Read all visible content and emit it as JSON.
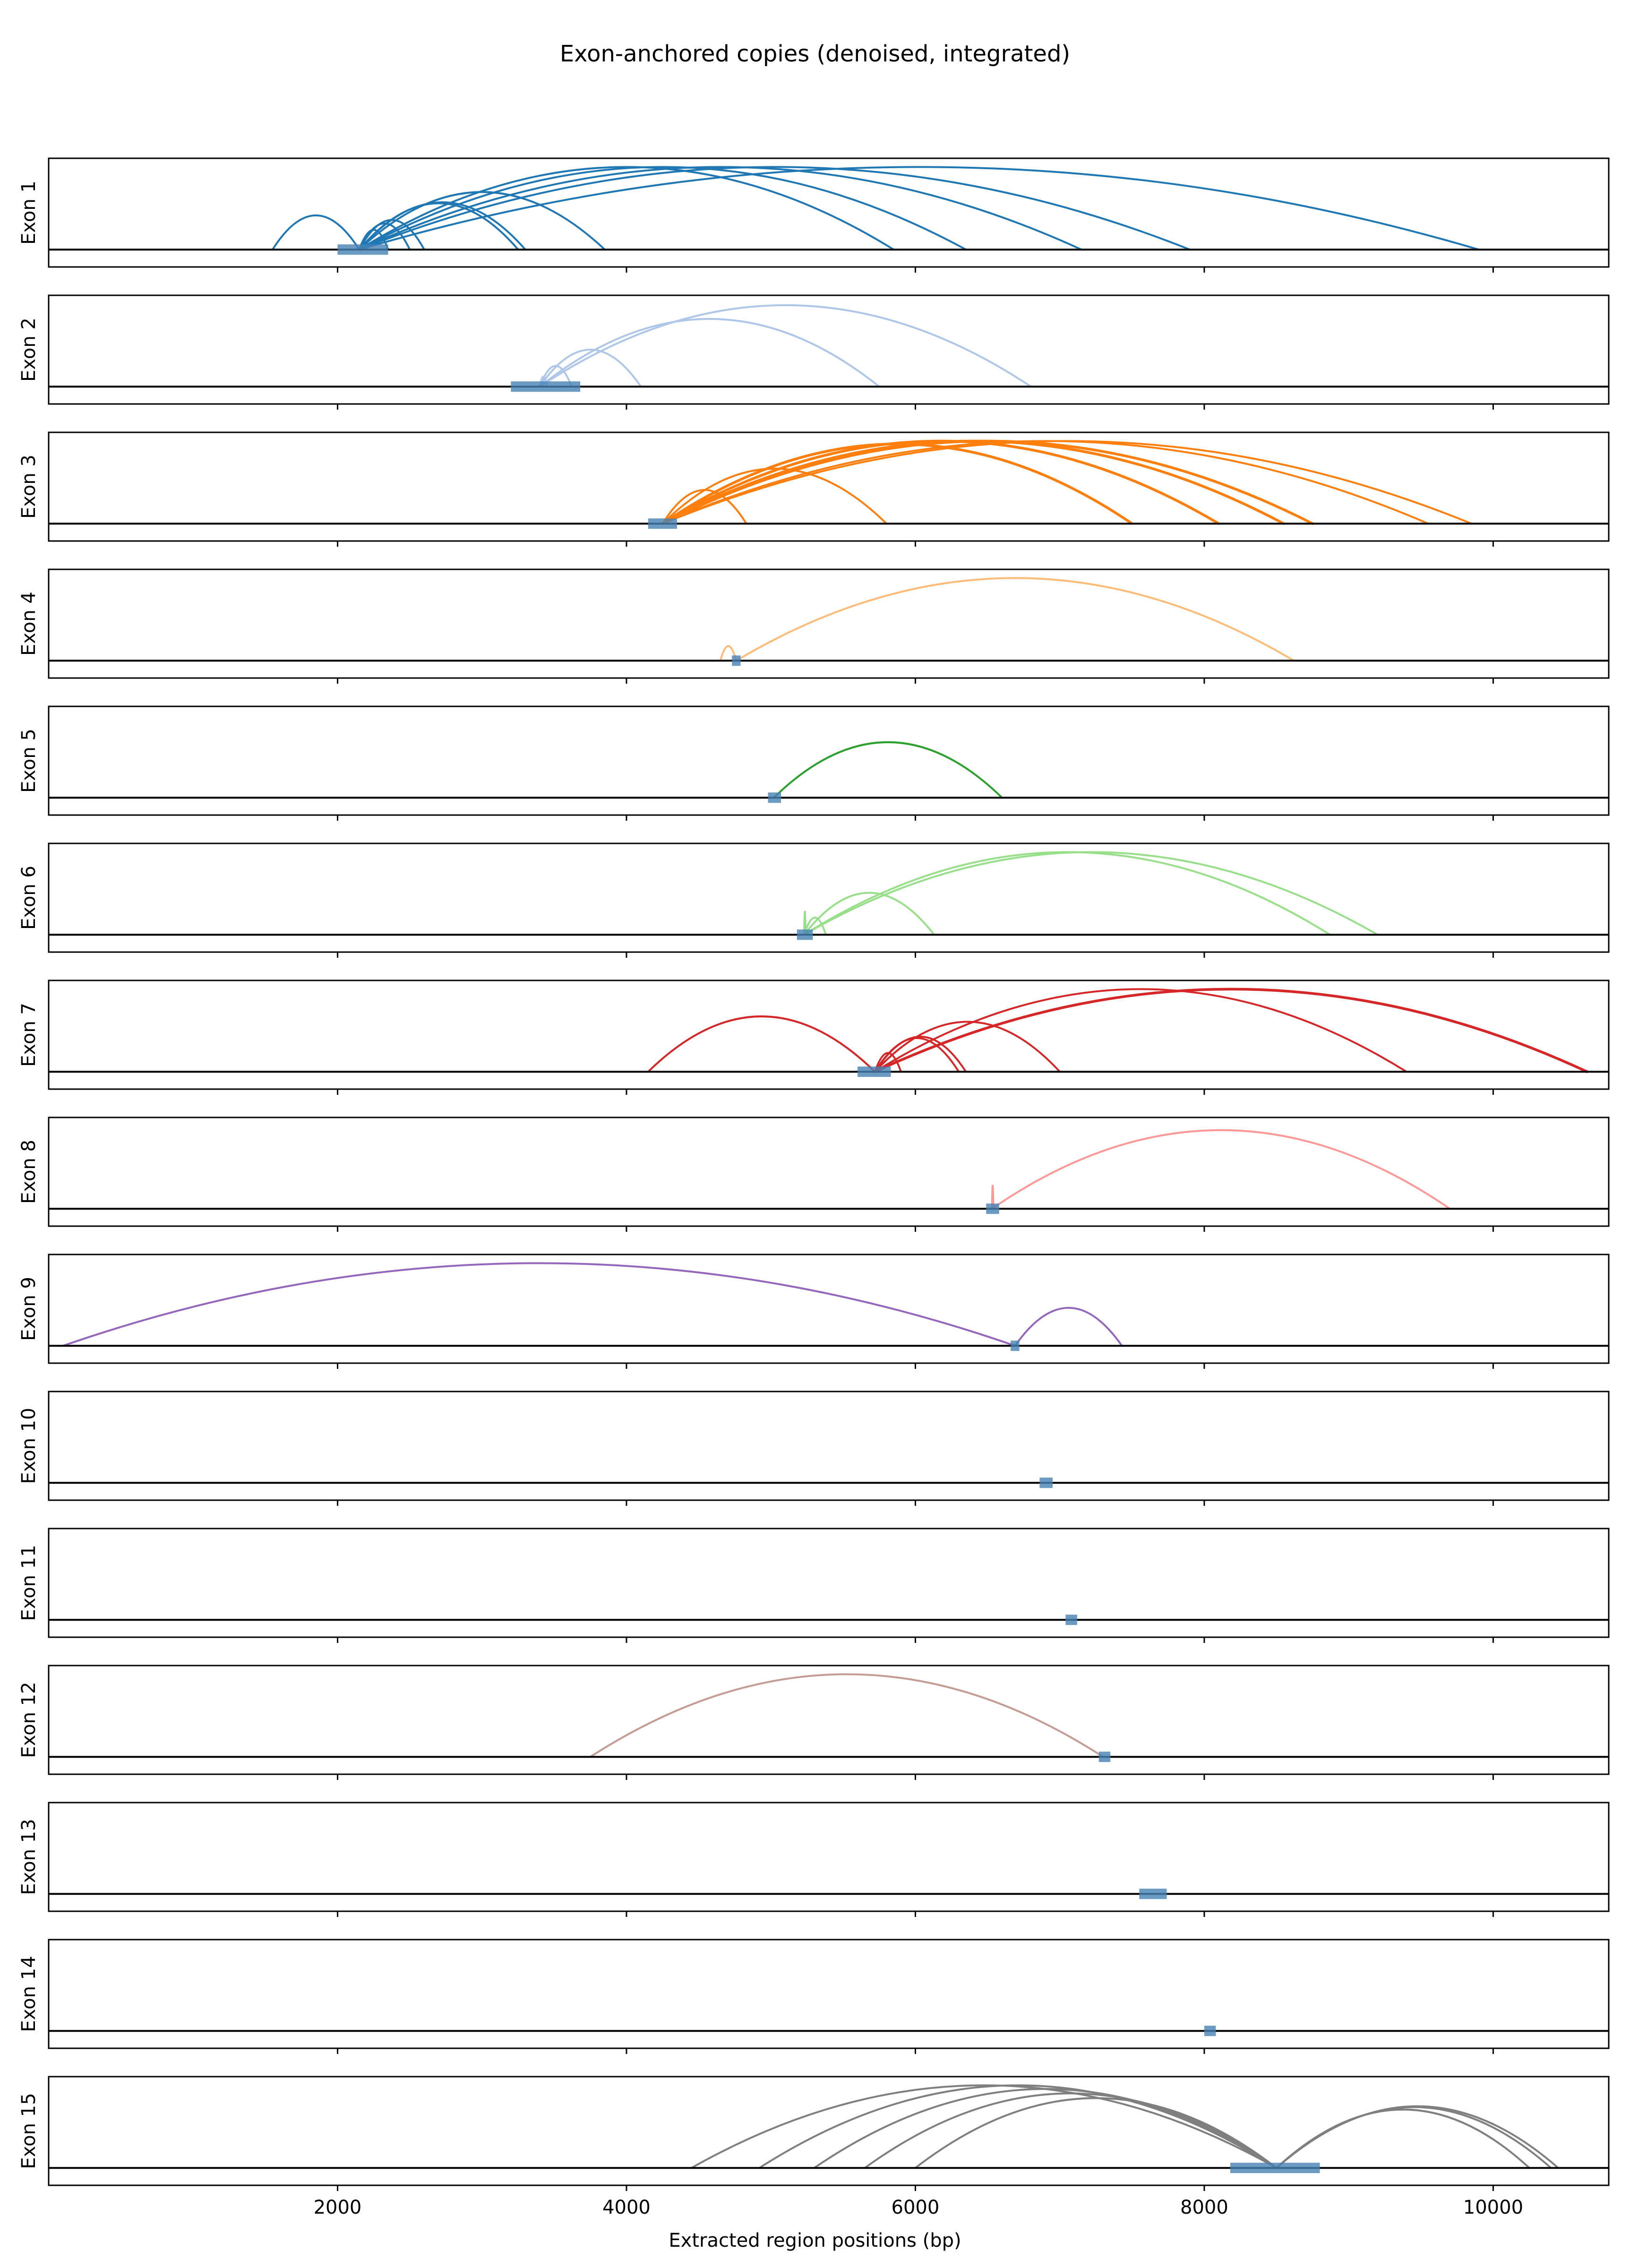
{
  "chart_data": {
    "type": "arc",
    "title": "Exon-anchored copies (denoised, integrated)",
    "xlabel": "Extracted region positions (bp)",
    "xlim": [
      0,
      10800
    ],
    "xticks": [
      2000,
      4000,
      6000,
      8000,
      10000
    ],
    "exons": [
      {
        "label": "Exon 1",
        "color": "#1f77b4",
        "anchor": [
          2000,
          2350
        ],
        "arcs": [
          {
            "start": 2150,
            "end": 1550,
            "width": 2.5
          },
          {
            "start": 2150,
            "end": 2350,
            "width": 2.5
          },
          {
            "start": 2150,
            "end": 2500,
            "width": 2.5
          },
          {
            "start": 2150,
            "end": 2600,
            "width": 2.5
          },
          {
            "start": 2150,
            "end": 3250,
            "width": 2.5
          },
          {
            "start": 2150,
            "end": 3300,
            "width": 2.5
          },
          {
            "start": 2150,
            "end": 3850,
            "width": 2.5
          },
          {
            "start": 2150,
            "end": 5850,
            "width": 2.5
          },
          {
            "start": 2150,
            "end": 6350,
            "width": 2.5
          },
          {
            "start": 2150,
            "end": 7150,
            "width": 2.5
          },
          {
            "start": 2150,
            "end": 7900,
            "width": 2.5
          },
          {
            "start": 2150,
            "end": 9900,
            "width": 2.5
          }
        ]
      },
      {
        "label": "Exon 2",
        "color": "#aec7e8",
        "anchor": [
          3200,
          3680
        ],
        "arcs": [
          {
            "start": 3400,
            "end": 3450,
            "width": 2.5
          },
          {
            "start": 3400,
            "end": 3620,
            "width": 2.5
          },
          {
            "start": 3400,
            "end": 4100,
            "width": 2.5
          },
          {
            "start": 3400,
            "end": 5750,
            "width": 2.5
          },
          {
            "start": 3400,
            "end": 6800,
            "width": 2.5
          }
        ]
      },
      {
        "label": "Exon 3",
        "color": "#ff7f0e",
        "anchor": [
          4150,
          4350
        ],
        "arcs": [
          {
            "start": 4250,
            "end": 4830,
            "width": 2.5
          },
          {
            "start": 4250,
            "end": 5800,
            "width": 2.5
          },
          {
            "start": 4250,
            "end": 7500,
            "width": 3.5
          },
          {
            "start": 4250,
            "end": 8100,
            "width": 3.5
          },
          {
            "start": 4250,
            "end": 8550,
            "width": 3.5
          },
          {
            "start": 4250,
            "end": 8750,
            "width": 3.5
          },
          {
            "start": 4250,
            "end": 9550,
            "width": 2.5
          },
          {
            "start": 4250,
            "end": 9850,
            "width": 2.5
          }
        ]
      },
      {
        "label": "Exon 4",
        "color": "#ffbb78",
        "anchor": [
          4730,
          4790
        ],
        "arcs": [
          {
            "start": 4760,
            "end": 4650,
            "width": 2.5
          },
          {
            "start": 4760,
            "end": 8620,
            "width": 2.5
          }
        ]
      },
      {
        "label": "Exon 5",
        "color": "#2ca02c",
        "anchor": [
          4980,
          5070
        ],
        "arcs": [
          {
            "start": 5020,
            "end": 6600,
            "width": 2.5
          }
        ]
      },
      {
        "label": "Exon 6",
        "color": "#98df8a",
        "anchor": [
          5180,
          5290
        ],
        "arcs": [
          {
            "start": 5230,
            "end": 5240,
            "width": 2.5
          },
          {
            "start": 5230,
            "end": 5380,
            "width": 2.5
          },
          {
            "start": 5230,
            "end": 6130,
            "width": 2.5
          },
          {
            "start": 5230,
            "end": 8870,
            "width": 2.5
          },
          {
            "start": 5230,
            "end": 9200,
            "width": 2.5
          }
        ]
      },
      {
        "label": "Exon 7",
        "color": "#d62728",
        "anchor": [
          5600,
          5830
        ],
        "arcs": [
          {
            "start": 5720,
            "end": 4150,
            "width": 2.5
          },
          {
            "start": 5720,
            "end": 5900,
            "width": 2.5
          },
          {
            "start": 5720,
            "end": 6300,
            "width": 2.5
          },
          {
            "start": 5720,
            "end": 6350,
            "width": 2.5
          },
          {
            "start": 5720,
            "end": 7000,
            "width": 2.5
          },
          {
            "start": 5720,
            "end": 9400,
            "width": 2.5
          },
          {
            "start": 5720,
            "end": 10650,
            "width": 3.5
          }
        ]
      },
      {
        "label": "Exon 8",
        "color": "#ff9896",
        "anchor": [
          6490,
          6580
        ],
        "arcs": [
          {
            "start": 6530,
            "end": 6540,
            "width": 2.5
          },
          {
            "start": 6530,
            "end": 9700,
            "width": 2.5
          }
        ]
      },
      {
        "label": "Exon 9",
        "color": "#9467bd",
        "anchor": [
          6660,
          6720
        ],
        "arcs": [
          {
            "start": 6690,
            "end": 100,
            "width": 2.5
          },
          {
            "start": 6690,
            "end": 7430,
            "width": 2.5
          }
        ]
      },
      {
        "label": "Exon 10",
        "color": "#8c564b",
        "anchor": [
          6860,
          6950
        ],
        "arcs": []
      },
      {
        "label": "Exon 11",
        "color": "#e377c2",
        "anchor": [
          7040,
          7120
        ],
        "arcs": []
      },
      {
        "label": "Exon 12",
        "color": "#c49c94",
        "anchor": [
          7270,
          7350
        ],
        "arcs": [
          {
            "start": 7300,
            "end": 3750,
            "width": 2.5
          }
        ]
      },
      {
        "label": "Exon 13",
        "color": "#f7b6d2",
        "anchor": [
          7550,
          7740
        ],
        "arcs": []
      },
      {
        "label": "Exon 14",
        "color": "#7f7f7f",
        "anchor": [
          8000,
          8080
        ],
        "arcs": []
      },
      {
        "label": "Exon 15",
        "color": "#7f7f7f",
        "anchor": [
          8180,
          8800
        ],
        "arcs": [
          {
            "start": 8500,
            "end": 4450,
            "width": 2.5
          },
          {
            "start": 8500,
            "end": 4920,
            "width": 2.5
          },
          {
            "start": 8500,
            "end": 5300,
            "width": 2.5
          },
          {
            "start": 8500,
            "end": 5650,
            "width": 2.5
          },
          {
            "start": 8500,
            "end": 6000,
            "width": 2.5
          },
          {
            "start": 8500,
            "end": 10250,
            "width": 2.5
          },
          {
            "start": 8500,
            "end": 10400,
            "width": 2.5
          },
          {
            "start": 8500,
            "end": 10450,
            "width": 2.5
          }
        ]
      }
    ]
  }
}
